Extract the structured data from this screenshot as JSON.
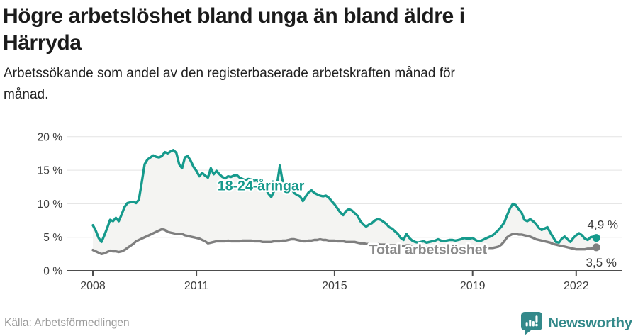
{
  "header": {
    "title_lines": [
      "Högre arbetslöshet bland unga än bland äldre i",
      "Härryda"
    ],
    "subtitle_lines": [
      "Arbetssökande som andel av den registerbaserade arbetskraften månad för",
      "månad."
    ]
  },
  "footer": {
    "source": "Källa: Arbetsförmedlingen",
    "brand": "Newsworthy"
  },
  "colors": {
    "young": "#169a8c",
    "total": "#7f7f7f",
    "total_label": "#8a8a8a",
    "area_fill": "#f4f4f2",
    "grid": "#e3e3e3",
    "axis": "#4d4d4d",
    "tick_text": "#3d3d3d",
    "end_label": "#383838",
    "brand_teal": "#33898a"
  },
  "chart_data": {
    "type": "line",
    "title": "Högre arbetslöshet bland unga än bland äldre i Härryda",
    "subtitle": "Arbetssökande som andel av den registerbaserade arbetskraften månad för månad.",
    "xlabel": "",
    "ylabel": "",
    "ylim": [
      0,
      20
    ],
    "xlim": [
      2008,
      2022.7
    ],
    "grid": true,
    "x_start_year": 2008,
    "points_per_year": 12,
    "x_ticks": [
      2008,
      2011,
      2015,
      2019,
      2022
    ],
    "y_ticks": [
      {
        "value": 0,
        "label": "0 %"
      },
      {
        "value": 5,
        "label": "5 %"
      },
      {
        "value": 10,
        "label": "10 %"
      },
      {
        "value": 15,
        "label": "15 %"
      },
      {
        "value": 20,
        "label": "20 %"
      }
    ],
    "series": [
      {
        "id": "young",
        "name": "18-24-åringar",
        "end_label": "4,9 %",
        "end_value": 4.9,
        "values": [
          6.8,
          6.0,
          4.9,
          4.3,
          5.3,
          6.4,
          7.6,
          7.4,
          7.9,
          7.4,
          8.4,
          9.5,
          10.1,
          10.2,
          10.3,
          10.1,
          10.6,
          13.2,
          15.9,
          16.6,
          16.9,
          17.2,
          17.0,
          16.9,
          17.1,
          17.7,
          17.5,
          17.8,
          18.0,
          17.6,
          15.9,
          15.3,
          16.9,
          17.1,
          16.4,
          15.5,
          14.9,
          14.1,
          14.6,
          14.2,
          13.9,
          15.3,
          14.4,
          14.9,
          14.4,
          14.0,
          13.8,
          14.1,
          14.0,
          14.2,
          14.3,
          13.9,
          13.7,
          13.5,
          13.7,
          13.6,
          13.4,
          13.5,
          13.1,
          12.7,
          12.3,
          11.5,
          11.0,
          11.9,
          12.8,
          15.7,
          13.2,
          12.7,
          12.4,
          12.2,
          11.6,
          11.3,
          11.1,
          10.4,
          11.1,
          11.7,
          12.0,
          11.6,
          11.4,
          11.2,
          11.1,
          11.2,
          10.9,
          10.4,
          9.9,
          9.3,
          8.7,
          8.3,
          8.9,
          9.2,
          9.0,
          8.6,
          8.2,
          7.4,
          6.9,
          6.6,
          6.9,
          7.1,
          7.5,
          7.7,
          7.6,
          7.3,
          7.0,
          6.5,
          6.3,
          5.9,
          5.5,
          4.9,
          4.6,
          5.5,
          4.9,
          4.5,
          4.3,
          4.2,
          4.3,
          4.4,
          4.2,
          4.3,
          4.4,
          4.5,
          4.7,
          4.5,
          4.4,
          4.5,
          4.6,
          4.6,
          4.5,
          4.6,
          4.7,
          4.9,
          4.8,
          4.8,
          4.9,
          4.6,
          4.4,
          4.5,
          4.7,
          4.9,
          5.1,
          5.3,
          5.7,
          6.1,
          6.6,
          7.2,
          8.3,
          9.3,
          10.0,
          9.8,
          9.2,
          8.7,
          7.6,
          7.4,
          7.7,
          7.4,
          7.0,
          6.4,
          6.1,
          6.3,
          6.5,
          5.7,
          5.0,
          4.3,
          4.2,
          4.8,
          5.1,
          4.7,
          4.3,
          4.9,
          5.3,
          5.6,
          5.3,
          4.8,
          4.6,
          5.0,
          5.1,
          4.9
        ]
      },
      {
        "id": "total",
        "name": "Total arbetslöshet",
        "end_label": "3,5 %",
        "end_value": 3.5,
        "values": [
          3.1,
          2.9,
          2.7,
          2.5,
          2.6,
          2.8,
          3.0,
          2.9,
          2.9,
          2.8,
          2.9,
          3.1,
          3.4,
          3.7,
          4.0,
          4.4,
          4.6,
          4.8,
          5.0,
          5.2,
          5.4,
          5.6,
          5.8,
          6.0,
          6.2,
          6.1,
          5.8,
          5.7,
          5.6,
          5.5,
          5.5,
          5.5,
          5.3,
          5.2,
          5.1,
          5.0,
          4.9,
          4.8,
          4.6,
          4.4,
          4.1,
          4.2,
          4.3,
          4.4,
          4.4,
          4.4,
          4.4,
          4.5,
          4.4,
          4.4,
          4.4,
          4.4,
          4.5,
          4.5,
          4.5,
          4.5,
          4.4,
          4.4,
          4.4,
          4.3,
          4.3,
          4.3,
          4.3,
          4.4,
          4.4,
          4.4,
          4.5,
          4.5,
          4.6,
          4.7,
          4.7,
          4.6,
          4.5,
          4.4,
          4.4,
          4.5,
          4.5,
          4.6,
          4.6,
          4.7,
          4.6,
          4.6,
          4.5,
          4.5,
          4.5,
          4.4,
          4.4,
          4.4,
          4.3,
          4.3,
          4.3,
          4.3,
          4.2,
          4.1,
          4.1,
          4.0,
          4.0,
          4.0,
          4.0,
          4.0,
          3.9,
          3.9,
          3.9,
          3.8,
          3.8,
          3.8,
          3.7,
          3.7,
          3.7,
          3.8,
          3.8,
          3.7,
          3.6,
          3.6,
          3.5,
          3.5,
          3.5,
          3.5,
          3.5,
          3.4,
          3.4,
          3.4,
          3.4,
          3.4,
          3.4,
          3.4,
          3.3,
          3.3,
          3.4,
          3.4,
          3.4,
          3.4,
          3.4,
          3.4,
          3.4,
          3.4,
          3.4,
          3.4,
          3.4,
          3.4,
          3.5,
          3.6,
          3.9,
          4.4,
          5.0,
          5.3,
          5.5,
          5.5,
          5.4,
          5.4,
          5.3,
          5.2,
          5.1,
          4.9,
          4.7,
          4.6,
          4.5,
          4.4,
          4.3,
          4.2,
          4.0,
          3.9,
          3.8,
          3.7,
          3.6,
          3.5,
          3.4,
          3.3,
          3.2,
          3.2,
          3.2,
          3.2,
          3.3,
          3.3,
          3.4,
          3.5
        ]
      }
    ],
    "annotations": [
      {
        "text": "18-24-åringar",
        "series": "young",
        "year": 2012.87,
        "value": 12.0
      },
      {
        "text": "Total arbetslöshet",
        "series": "total",
        "year": 2017.71,
        "value": 2.5
      }
    ],
    "legend_position": "inline-labels"
  }
}
